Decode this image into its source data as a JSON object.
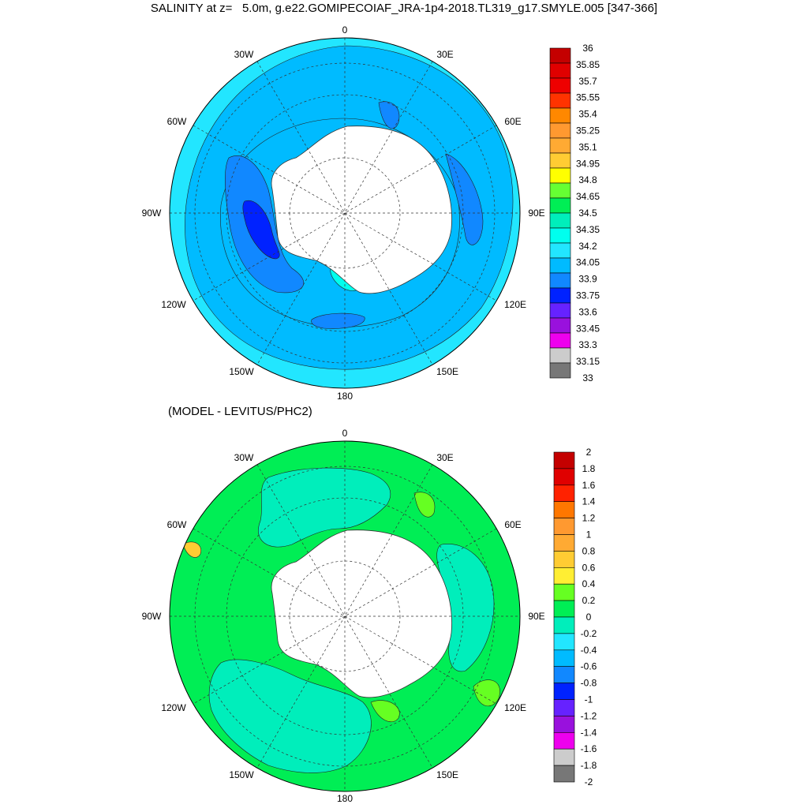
{
  "title": "SALINITY at z=   5.0m, g.e22.GOMIPECOIAF_JRA-1p4-2018.TL319_g17.SMYLE.005 [347-366]",
  "lon_labels": [
    "0",
    "30E",
    "60E",
    "90E",
    "120E",
    "150E",
    "180",
    "150W",
    "120W",
    "90W",
    "60W",
    "30W"
  ],
  "panel_top": {
    "colorbar": {
      "labels": [
        "36",
        "35.85",
        "35.7",
        "35.55",
        "35.4",
        "35.25",
        "35.1",
        "34.95",
        "34.8",
        "34.65",
        "34.5",
        "34.35",
        "34.2",
        "34.05",
        "33.9",
        "33.75",
        "33.6",
        "33.45",
        "33.3",
        "33.15",
        "33"
      ],
      "colors": [
        "#c40000",
        "#e00000",
        "#ee0000",
        "#ff3300",
        "#ff8800",
        "#ff9930",
        "#ffaa33",
        "#ffcc33",
        "#ffff00",
        "#66ff33",
        "#00ee55",
        "#00eebb",
        "#00ffee",
        "#22e6ff",
        "#00bbff",
        "#1188ff",
        "#0022ff",
        "#6622ff",
        "#9911dd",
        "#ee00ee",
        "#cccccc",
        "#777777"
      ]
    },
    "field_colors": {
      "outer": "#22e6ff",
      "ring": "#00bbff",
      "shelf": "#1188ff",
      "deep": "#0022ff",
      "rim": "#00ffee",
      "land": "#ffffff"
    }
  },
  "panel_bottom": {
    "subtitle": "(MODEL - LEVITUS/PHC2)",
    "colorbar": {
      "labels": [
        "2",
        "1.8",
        "1.6",
        "1.4",
        "1.2",
        "1",
        "0.8",
        "0.6",
        "0.4",
        "0.2",
        "0",
        "-0.2",
        "-0.4",
        "-0.6",
        "-0.8",
        "-1",
        "-1.2",
        "-1.4",
        "-1.6",
        "-1.8",
        "-2"
      ],
      "colors": [
        "#c40000",
        "#e00000",
        "#ff2200",
        "#ff7700",
        "#ff9930",
        "#ffaa33",
        "#ffcc33",
        "#ffee33",
        "#66ff22",
        "#00ee55",
        "#00eebb",
        "#22e6ff",
        "#00bbff",
        "#1188ff",
        "#0022ff",
        "#6622ff",
        "#9911dd",
        "#ee00ee",
        "#cccccc",
        "#777777"
      ]
    },
    "field_colors": {
      "base": "#00ee55",
      "neg": "#00eebb",
      "pos": "#66ff22",
      "warm": "#ffcc33",
      "land": "#ffffff"
    }
  }
}
